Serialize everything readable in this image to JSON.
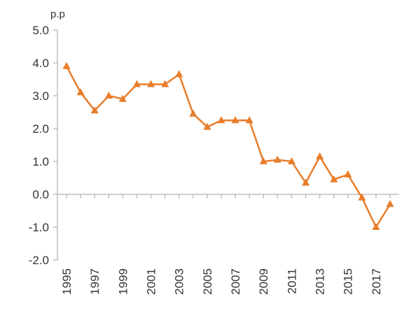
{
  "chart_data": {
    "type": "line",
    "title": "",
    "xlabel": "",
    "ylabel": "p.p",
    "ylim": [
      -2.0,
      5.0
    ],
    "yticks": [
      "5.0",
      "4.0",
      "3.0",
      "2.0",
      "1.0",
      "0.0",
      "-1.0",
      "-2.0"
    ],
    "xtick_labels": [
      "1995",
      "1997",
      "1999",
      "2001",
      "2003",
      "2005",
      "2007",
      "2009",
      "2011",
      "2013",
      "2015",
      "2017"
    ],
    "grid": false,
    "legend": "none",
    "series_color": "#E87D2A",
    "marker": "triangle",
    "x": [
      1995,
      1996,
      1997,
      1998,
      1999,
      2000,
      2001,
      2002,
      2003,
      2004,
      2005,
      2006,
      2007,
      2008,
      2009,
      2010,
      2011,
      2012,
      2013,
      2014,
      2015,
      2016,
      2017,
      2018
    ],
    "series": [
      {
        "values": [
          3.9,
          3.1,
          2.55,
          3.0,
          2.9,
          3.35,
          3.35,
          3.35,
          3.65,
          2.45,
          2.05,
          2.25,
          2.25,
          2.25,
          1.0,
          1.05,
          1.0,
          0.35,
          1.15,
          0.45,
          0.6,
          -0.1,
          -1.0,
          -0.3
        ]
      }
    ]
  }
}
